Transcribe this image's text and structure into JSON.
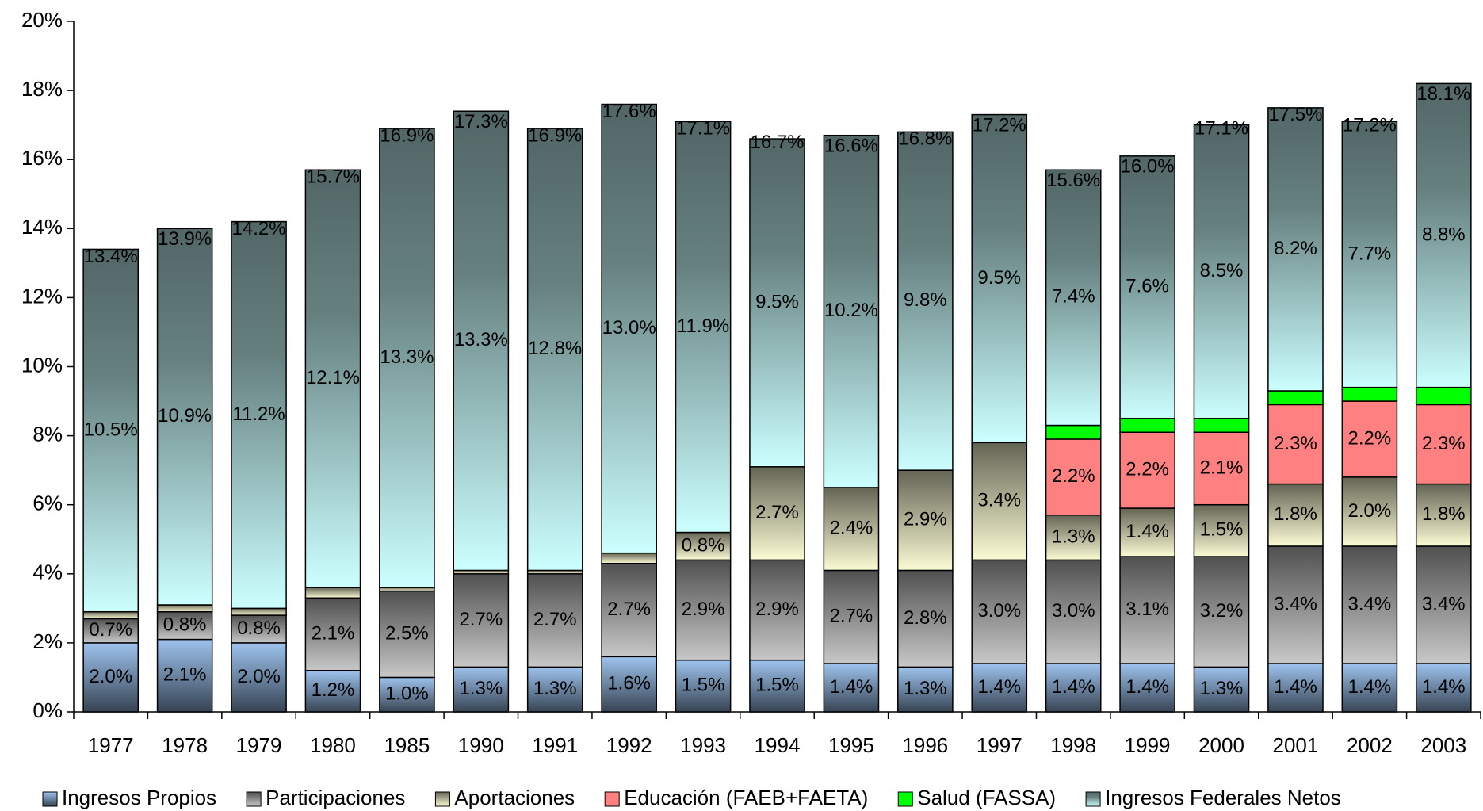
{
  "chart_data": {
    "type": "stacked_bar",
    "categories": [
      "1977",
      "1978",
      "1979",
      "1980",
      "1985",
      "1990",
      "1991",
      "1992",
      "1993",
      "1994",
      "1995",
      "1996",
      "1997",
      "1998",
      "1999",
      "2000",
      "2001",
      "2002",
      "2003"
    ],
    "series": [
      {
        "name": "Ingresos Propios",
        "color": "#9ec3ee",
        "values": [
          2.0,
          2.1,
          2.0,
          1.2,
          1.0,
          1.3,
          1.3,
          1.6,
          1.5,
          1.5,
          1.4,
          1.3,
          1.4,
          1.4,
          1.4,
          1.3,
          1.4,
          1.4,
          1.4
        ],
        "value_labels": [
          "2.0%",
          "2.1%",
          "2.0%",
          "1.2%",
          "1.0%",
          "1.3%",
          "1.3%",
          "1.6%",
          "1.5%",
          "1.5%",
          "1.4%",
          "1.3%",
          "1.4%",
          "1.4%",
          "1.4%",
          "1.3%",
          "1.4%",
          "1.4%",
          "1.4%"
        ]
      },
      {
        "name": "Participaciones",
        "color": "#c8c8c8",
        "values": [
          0.7,
          0.8,
          0.8,
          2.1,
          2.5,
          2.7,
          2.7,
          2.7,
          2.9,
          2.9,
          2.7,
          2.8,
          3.0,
          3.0,
          3.1,
          3.2,
          3.4,
          3.4,
          3.4
        ],
        "value_labels": [
          "0.7%",
          "0.8%",
          "0.8%",
          "2.1%",
          "2.5%",
          "2.7%",
          "2.7%",
          "2.7%",
          "2.9%",
          "2.9%",
          "2.7%",
          "2.8%",
          "3.0%",
          "3.0%",
          "3.1%",
          "3.2%",
          "3.4%",
          "3.4%",
          "3.4%"
        ]
      },
      {
        "name": "Aportaciones",
        "color": "#fbfbd4",
        "values": [
          0.2,
          0.2,
          0.2,
          0.3,
          0.1,
          0.1,
          0.1,
          0.3,
          0.8,
          2.7,
          2.4,
          2.9,
          3.4,
          1.3,
          1.4,
          1.5,
          1.8,
          2.0,
          1.8
        ],
        "value_labels": [
          "0.2%",
          "0.2%",
          "0.2%",
          "0.3%",
          "0.1%",
          "0.1%",
          "0.1%",
          "0.3%",
          "0.8%",
          "2.7%",
          "2.4%",
          "2.9%",
          "3.4%",
          "1.3%",
          "1.4%",
          "1.5%",
          "1.8%",
          "2.0%",
          "1.8%"
        ]
      },
      {
        "name": "Educación (FAEB+FAETA)",
        "color": "#ff8080",
        "values": [
          null,
          null,
          null,
          null,
          null,
          null,
          null,
          null,
          null,
          null,
          null,
          null,
          null,
          2.2,
          2.2,
          2.1,
          2.3,
          2.2,
          2.3
        ],
        "value_labels": [
          null,
          null,
          null,
          null,
          null,
          null,
          null,
          null,
          null,
          null,
          null,
          null,
          null,
          "2.2%",
          "2.2%",
          "2.1%",
          "2.3%",
          "2.2%",
          "2.3%"
        ]
      },
      {
        "name": "Salud (FASSA)",
        "color": "#00ff00",
        "values": [
          null,
          null,
          null,
          null,
          null,
          null,
          null,
          null,
          null,
          null,
          null,
          null,
          null,
          0.4,
          0.4,
          0.4,
          0.4,
          0.4,
          0.5
        ],
        "value_labels": [
          null,
          null,
          null,
          null,
          null,
          null,
          null,
          null,
          null,
          null,
          null,
          null,
          null,
          "0.4%",
          "0.4%",
          "0.4%",
          "0.4%",
          "0.4%",
          "0.5%"
        ]
      },
      {
        "name": "Ingresos Federales Netos",
        "color": "#ccffff",
        "values": [
          10.5,
          10.9,
          11.2,
          12.1,
          13.3,
          13.3,
          12.8,
          13.0,
          11.9,
          9.5,
          10.2,
          9.8,
          9.5,
          7.4,
          7.6,
          8.5,
          8.2,
          7.7,
          8.8
        ],
        "value_labels": [
          "10.5%",
          "10.9%",
          "11.2%",
          "12.1%",
          "13.3%",
          "13.3%",
          "12.8%",
          "13.0%",
          "11.9%",
          "9.5%",
          "10.2%",
          "9.8%",
          "9.5%",
          "7.4%",
          "7.6%",
          "8.5%",
          "8.2%",
          "7.7%",
          "8.8%"
        ]
      }
    ],
    "totals": [
      13.4,
      13.9,
      14.2,
      15.7,
      16.9,
      17.3,
      16.9,
      17.6,
      17.1,
      16.7,
      16.6,
      16.8,
      17.2,
      15.6,
      16.0,
      17.1,
      17.5,
      17.2,
      18.1
    ],
    "total_labels": [
      "13.4%",
      "13.9%",
      "14.2%",
      "15.7%",
      "16.9%",
      "17.3%",
      "16.9%",
      "17.6%",
      "17.1%",
      "16.7%",
      "16.6%",
      "16.8%",
      "17.2%",
      "15.6%",
      "16.0%",
      "17.1%",
      "17.5%",
      "17.2%",
      "18.1%"
    ],
    "ylim": [
      0,
      20
    ],
    "yticks": [
      {
        "value": 0,
        "label": "0%"
      },
      {
        "value": 2,
        "label": "2%"
      },
      {
        "value": 4,
        "label": "4%"
      },
      {
        "value": 6,
        "label": "6%"
      },
      {
        "value": 8,
        "label": "8%"
      },
      {
        "value": 10,
        "label": "10%"
      },
      {
        "value": 12,
        "label": "12%"
      },
      {
        "value": 14,
        "label": "14%"
      },
      {
        "value": 16,
        "label": "16%"
      },
      {
        "value": 18,
        "label": "18%"
      },
      {
        "value": 20,
        "label": "20%"
      }
    ],
    "legend": "bottom"
  }
}
